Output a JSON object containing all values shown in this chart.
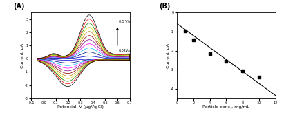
{
  "panel_A": {
    "label": "(A)",
    "xlabel": "Potential, V (μg/AgCl)",
    "ylabel": "Current, μA",
    "xlim": [
      -0.1,
      0.7
    ],
    "ylim": [
      -3.0,
      3.5
    ],
    "xticks": [
      -0.1,
      0.0,
      0.1,
      0.2,
      0.3,
      0.4,
      0.5,
      0.6,
      0.7
    ],
    "yticks": [
      -3,
      -2,
      -1,
      0,
      1,
      2,
      3
    ],
    "n_curves": 11,
    "colors": [
      "#0000cd",
      "#000080",
      "#00bfff",
      "#ff00ff",
      "#800080",
      "#8b0000",
      "#b8860b",
      "#dddd00",
      "#008000",
      "#ff0000",
      "#000000"
    ],
    "annotation_top": "0.5 V/s",
    "annotation_bot": "0.02V/s"
  },
  "panel_B": {
    "label": "(B)",
    "xlabel": "Particle conc., mg/mL",
    "ylabel": "Current, μA",
    "xlim": [
      0,
      12
    ],
    "ylim": [
      -4.5,
      0
    ],
    "xticks": [
      0,
      2,
      4,
      6,
      8,
      10,
      12
    ],
    "yticks": [
      -4,
      -3,
      -2,
      -1,
      0
    ],
    "data_x": [
      1,
      2,
      4,
      6,
      8,
      10
    ],
    "data_y": [
      -0.95,
      -1.45,
      -2.15,
      -2.55,
      -3.05,
      -3.4
    ],
    "fit_x0": 0,
    "fit_x1": 12,
    "fit_y0": -0.58,
    "fit_y1": -4.35,
    "marker": "s",
    "marker_color": "black",
    "line_color": "black"
  }
}
